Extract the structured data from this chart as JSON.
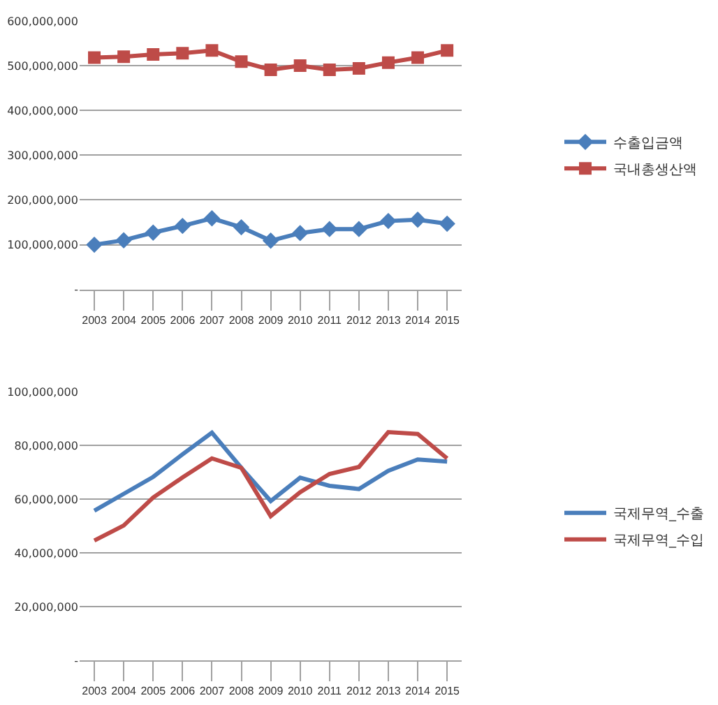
{
  "chart_data": [
    {
      "type": "line",
      "categories": [
        "2003",
        "2004",
        "2005",
        "2006",
        "2007",
        "2008",
        "2009",
        "2010",
        "2011",
        "2012",
        "2013",
        "2014",
        "2015"
      ],
      "series": [
        {
          "name": "수출입금액",
          "color": "#4a7ebb",
          "marker": "diamond",
          "values": [
            100000000,
            110000000,
            127000000,
            142000000,
            159000000,
            139000000,
            109000000,
            126000000,
            135000000,
            135000000,
            153000000,
            156000000,
            147000000
          ]
        },
        {
          "name": "국내총생산액",
          "color": "#be4b48",
          "marker": "square",
          "values": [
            518000000,
            520000000,
            525000000,
            528000000,
            534000000,
            509000000,
            491000000,
            500000000,
            491000000,
            494000000,
            507000000,
            518000000,
            534000000
          ]
        }
      ],
      "ylim": [
        0,
        600000000
      ],
      "yticks": [
        {
          "value": 0,
          "label": "-"
        },
        {
          "value": 100000000,
          "label": "100,000,000"
        },
        {
          "value": 200000000,
          "label": "200,000,000"
        },
        {
          "value": 300000000,
          "label": "300,000,000"
        },
        {
          "value": 400000000,
          "label": "400,000,000"
        },
        {
          "value": 500000000,
          "label": "500,000,000"
        },
        {
          "value": 600000000,
          "label": "600,000,000"
        }
      ],
      "grid": "y",
      "legend": "right"
    },
    {
      "type": "line",
      "categories": [
        "2003",
        "2004",
        "2005",
        "2006",
        "2007",
        "2008",
        "2009",
        "2010",
        "2011",
        "2012",
        "2013",
        "2014",
        "2015"
      ],
      "series": [
        {
          "name": "국제무역_수출",
          "color": "#4a7ebb",
          "values": [
            55700000,
            62000000,
            68300000,
            76700000,
            84800000,
            71700000,
            59300000,
            68000000,
            65000000,
            63800000,
            70600000,
            74800000,
            74000000
          ]
        },
        {
          "name": "국제무역_수입",
          "color": "#be4b48",
          "values": [
            44600000,
            50200000,
            60600000,
            68100000,
            75200000,
            71700000,
            53700000,
            62600000,
            69400000,
            72000000,
            85000000,
            84300000,
            75200000
          ]
        }
      ],
      "ylim": [
        0,
        100000000
      ],
      "yticks": [
        {
          "value": 0,
          "label": "-"
        },
        {
          "value": 20000000,
          "label": "20,000,000"
        },
        {
          "value": 40000000,
          "label": "40,000,000"
        },
        {
          "value": 60000000,
          "label": "60,000,000"
        },
        {
          "value": 80000000,
          "label": "80,000,000"
        },
        {
          "value": 100000000,
          "label": "100,000,000"
        }
      ],
      "grid": "y",
      "legend": "right"
    }
  ]
}
